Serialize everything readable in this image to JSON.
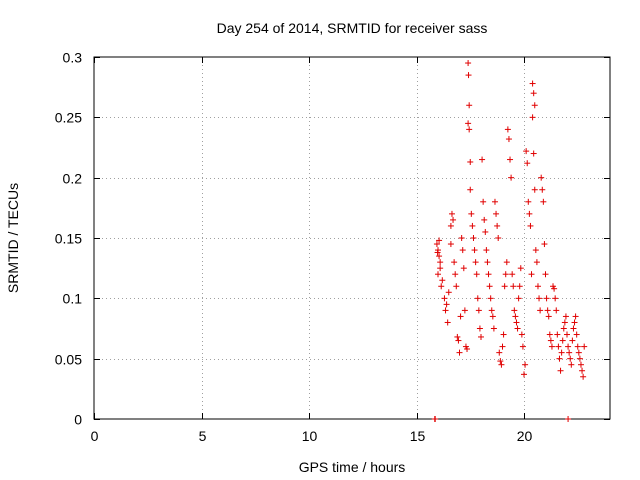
{
  "chart_data": {
    "type": "scatter",
    "title": "Day 254 of 2014, SRMTID for receiver sass",
    "xlabel": "GPS time / hours",
    "ylabel": "SRMTID / TECUs",
    "xlim": [
      0,
      24
    ],
    "ylim": [
      0,
      0.3
    ],
    "xticks": [
      0,
      5,
      10,
      15,
      20
    ],
    "yticks": [
      0,
      0.05,
      0.1,
      0.15,
      0.2,
      0.25,
      0.3
    ],
    "xtick_labels": [
      "0",
      "5",
      "10",
      "15",
      "20"
    ],
    "ytick_labels": [
      "0",
      "0.05",
      "0.1",
      "0.15",
      "0.2",
      "0.25",
      "0.3"
    ],
    "grid": true,
    "marker": "plus",
    "color": "#e00000",
    "series": [
      {
        "name": "SRMTID",
        "points": [
          [
            15.85,
            0.0
          ],
          [
            15.86,
            0.0
          ],
          [
            15.87,
            0.0
          ],
          [
            22.05,
            0.0
          ],
          [
            15.95,
            0.145
          ],
          [
            16.0,
            0.14
          ],
          [
            16.05,
            0.135
          ],
          [
            16.1,
            0.13
          ],
          [
            16.0,
            0.12
          ],
          [
            16.1,
            0.125
          ],
          [
            16.05,
            0.148
          ],
          [
            15.98,
            0.138
          ],
          [
            16.2,
            0.115
          ],
          [
            16.15,
            0.11
          ],
          [
            16.3,
            0.1
          ],
          [
            16.35,
            0.09
          ],
          [
            16.4,
            0.095
          ],
          [
            16.45,
            0.08
          ],
          [
            16.5,
            0.105
          ],
          [
            16.6,
            0.145
          ],
          [
            16.6,
            0.16
          ],
          [
            16.65,
            0.17
          ],
          [
            16.7,
            0.165
          ],
          [
            16.75,
            0.13
          ],
          [
            16.8,
            0.12
          ],
          [
            16.85,
            0.11
          ],
          [
            16.9,
            0.068
          ],
          [
            16.95,
            0.065
          ],
          [
            17.0,
            0.055
          ],
          [
            17.05,
            0.085
          ],
          [
            17.1,
            0.15
          ],
          [
            17.15,
            0.14
          ],
          [
            17.2,
            0.125
          ],
          [
            17.25,
            0.09
          ],
          [
            17.3,
            0.06
          ],
          [
            17.35,
            0.058
          ],
          [
            17.4,
            0.295
          ],
          [
            17.42,
            0.285
          ],
          [
            17.45,
            0.26
          ],
          [
            17.4,
            0.245
          ],
          [
            17.45,
            0.24
          ],
          [
            17.5,
            0.213
          ],
          [
            17.5,
            0.19
          ],
          [
            17.55,
            0.17
          ],
          [
            17.6,
            0.16
          ],
          [
            17.65,
            0.15
          ],
          [
            17.7,
            0.14
          ],
          [
            17.75,
            0.13
          ],
          [
            17.8,
            0.12
          ],
          [
            17.85,
            0.1
          ],
          [
            17.9,
            0.09
          ],
          [
            17.95,
            0.075
          ],
          [
            18.0,
            0.068
          ],
          [
            18.05,
            0.215
          ],
          [
            18.1,
            0.18
          ],
          [
            18.15,
            0.165
          ],
          [
            18.2,
            0.155
          ],
          [
            18.25,
            0.14
          ],
          [
            18.3,
            0.13
          ],
          [
            18.35,
            0.12
          ],
          [
            18.4,
            0.11
          ],
          [
            18.45,
            0.1
          ],
          [
            18.5,
            0.09
          ],
          [
            18.55,
            0.085
          ],
          [
            18.6,
            0.075
          ],
          [
            18.65,
            0.18
          ],
          [
            18.7,
            0.17
          ],
          [
            18.75,
            0.16
          ],
          [
            18.8,
            0.15
          ],
          [
            18.85,
            0.055
          ],
          [
            18.9,
            0.048
          ],
          [
            18.95,
            0.045
          ],
          [
            19.0,
            0.06
          ],
          [
            19.05,
            0.07
          ],
          [
            19.1,
            0.11
          ],
          [
            19.15,
            0.12
          ],
          [
            19.2,
            0.13
          ],
          [
            19.25,
            0.24
          ],
          [
            19.3,
            0.232
          ],
          [
            19.35,
            0.215
          ],
          [
            19.4,
            0.2
          ],
          [
            19.45,
            0.12
          ],
          [
            19.5,
            0.11
          ],
          [
            19.55,
            0.09
          ],
          [
            19.6,
            0.085
          ],
          [
            19.65,
            0.08
          ],
          [
            19.7,
            0.075
          ],
          [
            19.75,
            0.1
          ],
          [
            19.8,
            0.11
          ],
          [
            19.85,
            0.125
          ],
          [
            19.9,
            0.07
          ],
          [
            19.95,
            0.06
          ],
          [
            20.0,
            0.037
          ],
          [
            20.05,
            0.045
          ],
          [
            20.1,
            0.222
          ],
          [
            20.15,
            0.212
          ],
          [
            20.2,
            0.18
          ],
          [
            20.25,
            0.17
          ],
          [
            20.3,
            0.16
          ],
          [
            20.35,
            0.12
          ],
          [
            20.4,
            0.278
          ],
          [
            20.45,
            0.27
          ],
          [
            20.5,
            0.26
          ],
          [
            20.4,
            0.25
          ],
          [
            20.45,
            0.22
          ],
          [
            20.5,
            0.19
          ],
          [
            20.55,
            0.14
          ],
          [
            20.6,
            0.13
          ],
          [
            20.65,
            0.11
          ],
          [
            20.7,
            0.1
          ],
          [
            20.75,
            0.09
          ],
          [
            20.8,
            0.2
          ],
          [
            20.85,
            0.19
          ],
          [
            20.9,
            0.18
          ],
          [
            20.95,
            0.145
          ],
          [
            21.0,
            0.12
          ],
          [
            21.05,
            0.1
          ],
          [
            21.1,
            0.09
          ],
          [
            21.15,
            0.085
          ],
          [
            21.2,
            0.07
          ],
          [
            21.25,
            0.065
          ],
          [
            21.3,
            0.06
          ],
          [
            21.35,
            0.11
          ],
          [
            21.4,
            0.108
          ],
          [
            21.45,
            0.1
          ],
          [
            21.5,
            0.09
          ],
          [
            21.55,
            0.07
          ],
          [
            21.6,
            0.06
          ],
          [
            21.65,
            0.05
          ],
          [
            21.7,
            0.04
          ],
          [
            21.75,
            0.055
          ],
          [
            21.8,
            0.065
          ],
          [
            21.85,
            0.075
          ],
          [
            21.9,
            0.08
          ],
          [
            21.95,
            0.085
          ],
          [
            22.0,
            0.07
          ],
          [
            22.05,
            0.06
          ],
          [
            22.1,
            0.055
          ],
          [
            22.15,
            0.05
          ],
          [
            22.2,
            0.045
          ],
          [
            22.25,
            0.065
          ],
          [
            22.3,
            0.075
          ],
          [
            22.35,
            0.08
          ],
          [
            22.4,
            0.085
          ],
          [
            22.45,
            0.07
          ],
          [
            22.5,
            0.06
          ],
          [
            22.55,
            0.055
          ],
          [
            22.6,
            0.05
          ],
          [
            22.65,
            0.045
          ],
          [
            22.7,
            0.04
          ],
          [
            22.75,
            0.035
          ],
          [
            22.8,
            0.06
          ]
        ]
      }
    ]
  }
}
